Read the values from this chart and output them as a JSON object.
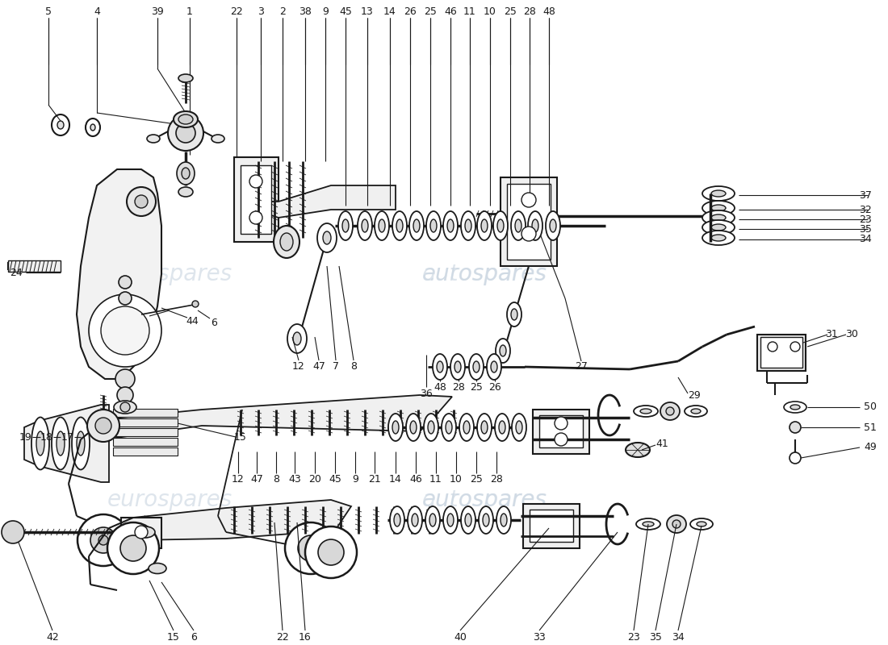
{
  "bg_color": "#ffffff",
  "line_color": "#1a1a1a",
  "wm_color": "#c8d4e0",
  "fig_w": 11.0,
  "fig_h": 8.0,
  "dpi": 100,
  "top_nums": [
    [
      "5",
      60
    ],
    [
      "4",
      120
    ],
    [
      "39",
      195
    ],
    [
      "1",
      235
    ],
    [
      "22",
      293
    ],
    [
      "3",
      323
    ],
    [
      "2",
      350
    ],
    [
      "38",
      378
    ],
    [
      "9",
      403
    ],
    [
      "45",
      428
    ],
    [
      "13",
      455
    ],
    [
      "14",
      483
    ],
    [
      "26",
      508
    ],
    [
      "25",
      533
    ],
    [
      "46",
      558
    ],
    [
      "11",
      582
    ],
    [
      "10",
      607
    ],
    [
      "25",
      632
    ],
    [
      "28",
      656
    ],
    [
      "48",
      680
    ]
  ],
  "right_nums": [
    [
      "37",
      955
    ],
    [
      "32",
      955
    ],
    [
      "23",
      955
    ],
    [
      "35",
      955
    ],
    [
      "34",
      955
    ]
  ]
}
